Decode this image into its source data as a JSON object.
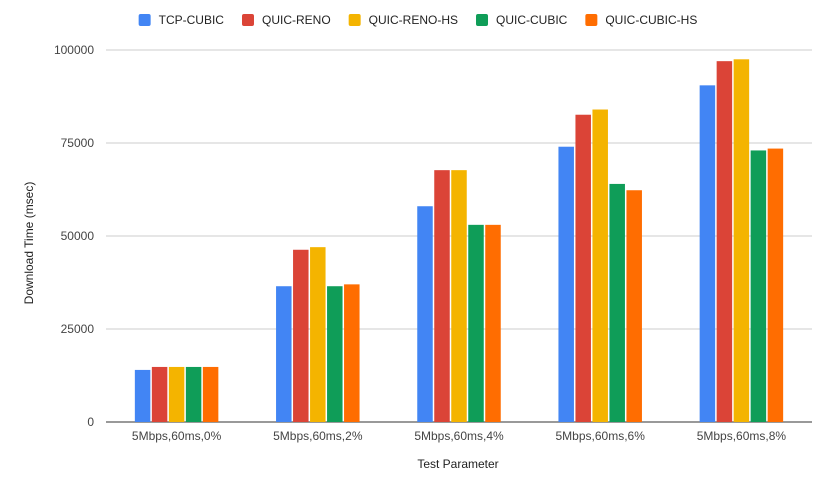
{
  "chart_data": {
    "type": "bar",
    "title": "",
    "xlabel": "Test Parameter",
    "ylabel": "Download Time (msec)",
    "categories": [
      "5Mbps,60ms,0%",
      "5Mbps,60ms,2%",
      "5Mbps,60ms,4%",
      "5Mbps,60ms,6%",
      "5Mbps,60ms,8%"
    ],
    "ylim": [
      0,
      100000
    ],
    "yticks": [
      0,
      25000,
      50000,
      75000,
      100000
    ],
    "ytick_labels": [
      "0",
      "25000",
      "50000",
      "75000",
      "100000"
    ],
    "grid": true,
    "legend_position": "top",
    "series": [
      {
        "name": "TCP-CUBIC",
        "color": "#4285F4",
        "values": [
          14000,
          36500,
          58000,
          74000,
          90500
        ]
      },
      {
        "name": "QUIC-RENO",
        "color": "#DB4437",
        "values": [
          14800,
          46300,
          67700,
          82600,
          97000
        ]
      },
      {
        "name": "QUIC-RENO-HS",
        "color": "#F4B400",
        "values": [
          14800,
          47000,
          67700,
          84000,
          97500
        ]
      },
      {
        "name": "QUIC-CUBIC",
        "color": "#0F9D58",
        "values": [
          14800,
          36500,
          53000,
          64000,
          73000
        ]
      },
      {
        "name": "QUIC-CUBIC-HS",
        "color": "#FF6D01",
        "values": [
          14800,
          37000,
          53000,
          62300,
          73500
        ]
      }
    ]
  }
}
